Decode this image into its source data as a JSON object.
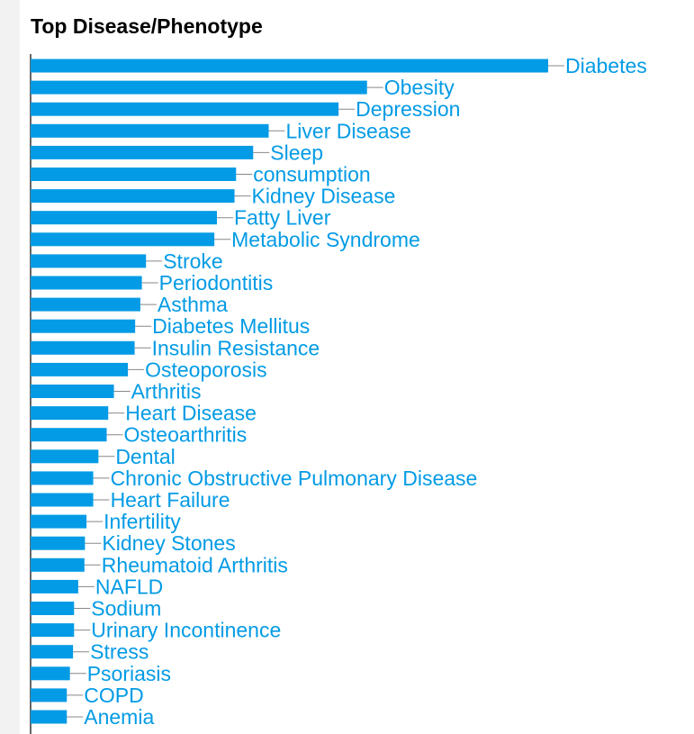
{
  "colors": {
    "bar": "#039be5",
    "label": "#039be5",
    "axis": "#333333",
    "leader": "#888888"
  },
  "chart_data": {
    "type": "bar",
    "orientation": "horizontal",
    "title": "Top Disease/Phenotype",
    "grid": false,
    "legend": "none",
    "xlim": [
      0,
      100
    ],
    "categories": [
      "Diabetes",
      "Obesity",
      "Depression",
      "Liver Disease",
      "Sleep",
      "consumption",
      "Kidney Disease",
      "Fatty Liver",
      "Metabolic Syndrome",
      "Stroke",
      "Periodontitis",
      "Asthma",
      "Diabetes Mellitus",
      "Insulin Resistance",
      "Osteoporosis",
      "Arthritis",
      "Heart Disease",
      "Osteoarthritis",
      "Dental",
      "Chronic Obstructive Pulmonary Disease",
      "Heart Failure",
      "Infertility",
      "Kidney Stones",
      "Rheumatoid Arthritis",
      "NAFLD",
      "Sodium",
      "Urinary Incontinence",
      "Stress",
      "Psoriasis",
      "COPD",
      "Anemia"
    ],
    "values": [
      100,
      65,
      59.5,
      46,
      43,
      39.7,
      39.4,
      36,
      35.5,
      22.3,
      21.5,
      21.2,
      20.2,
      20.1,
      18.8,
      16.1,
      15,
      14.7,
      13.1,
      12.1,
      12.1,
      10.8,
      10.5,
      10.4,
      9.2,
      8.4,
      8.4,
      8.2,
      7.6,
      7,
      7
    ]
  }
}
